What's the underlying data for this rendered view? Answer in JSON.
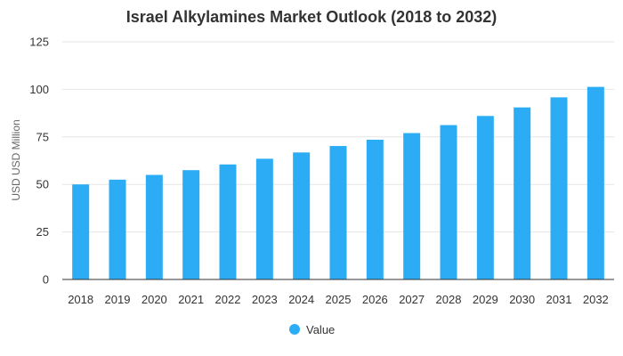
{
  "chart_data": {
    "type": "bar",
    "title": "Israel Alkylamines Market Outlook (2018 to 2032)",
    "xlabel": "",
    "ylabel": "USD USD Million",
    "categories": [
      "2018",
      "2019",
      "2020",
      "2021",
      "2022",
      "2023",
      "2024",
      "2025",
      "2026",
      "2027",
      "2028",
      "2029",
      "2030",
      "2031",
      "2032"
    ],
    "series": [
      {
        "name": "Value",
        "values": [
          50,
          52.5,
          55,
          57.5,
          60.5,
          63.5,
          66.8,
          70.2,
          73.5,
          77,
          81.2,
          86,
          90.5,
          95.8,
          101.3
        ]
      }
    ],
    "ylim": [
      0,
      125
    ],
    "yticks": [
      "0",
      "25",
      "50",
      "75",
      "100",
      "125"
    ],
    "grid": true,
    "legend_position": "bottom",
    "colors": {
      "bar": "#2BACF5",
      "grid": "#e6e6e6",
      "axis": "#333333"
    }
  }
}
